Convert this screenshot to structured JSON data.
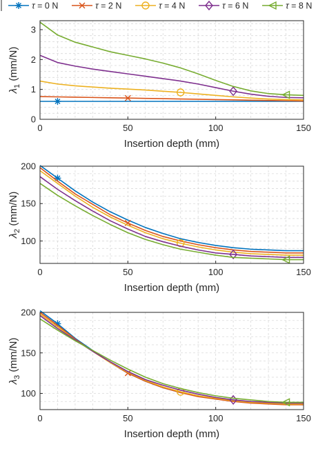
{
  "legend": {
    "entries": [
      {
        "tau": "τ",
        "label": " = 0 N",
        "color": "#0072BD",
        "marker": "asterisk"
      },
      {
        "tau": "τ",
        "label": " = 2 N",
        "color": "#D95319",
        "marker": "x"
      },
      {
        "tau": "τ",
        "label": " = 4 N",
        "color": "#EDB120",
        "marker": "circle"
      },
      {
        "tau": "τ",
        "label": " = 6 N",
        "color": "#7E2F8E",
        "marker": "diamond"
      },
      {
        "tau": "τ",
        "label": " = 8 N",
        "color": "#77AC30",
        "marker": "triangle-left"
      }
    ]
  },
  "chart_data": [
    {
      "type": "line",
      "xlabel": "Insertion depth (mm)",
      "ylabel": {
        "main": "λ",
        "sub": "1",
        "unit": " (mm/N)"
      },
      "xlim": [
        0,
        150
      ],
      "ylim": [
        0,
        3.3
      ],
      "xticks": [
        0,
        50,
        100,
        150
      ],
      "yticks": [
        0,
        1,
        2,
        3
      ],
      "grid": "dashed-minor",
      "x": [
        0,
        10,
        20,
        30,
        40,
        50,
        60,
        70,
        80,
        90,
        100,
        110,
        120,
        130,
        140,
        150
      ],
      "series": [
        {
          "name": "τ = 0 N",
          "color": "#0072BD",
          "marker": "asterisk",
          "marker_x": 10,
          "values": [
            0.6,
            0.6,
            0.6,
            0.6,
            0.6,
            0.6,
            0.6,
            0.6,
            0.6,
            0.6,
            0.6,
            0.6,
            0.6,
            0.6,
            0.6,
            0.6
          ]
        },
        {
          "name": "τ = 2 N",
          "color": "#D95319",
          "marker": "x",
          "marker_x": 50,
          "values": [
            0.76,
            0.75,
            0.74,
            0.73,
            0.72,
            0.71,
            0.7,
            0.69,
            0.68,
            0.67,
            0.66,
            0.65,
            0.64,
            0.63,
            0.62,
            0.61
          ]
        },
        {
          "name": "τ = 4 N",
          "color": "#EDB120",
          "marker": "circle",
          "marker_x": 80,
          "values": [
            1.28,
            1.18,
            1.12,
            1.08,
            1.04,
            1.01,
            0.98,
            0.94,
            0.9,
            0.85,
            0.8,
            0.75,
            0.71,
            0.68,
            0.66,
            0.65
          ]
        },
        {
          "name": "τ = 6 N",
          "color": "#7E2F8E",
          "marker": "diamond",
          "marker_x": 110,
          "values": [
            2.14,
            1.9,
            1.78,
            1.68,
            1.6,
            1.52,
            1.44,
            1.36,
            1.28,
            1.18,
            1.06,
            0.94,
            0.84,
            0.77,
            0.73,
            0.72
          ]
        },
        {
          "name": "τ = 8 N",
          "color": "#77AC30",
          "marker": "triangle-left",
          "marker_x": 140,
          "values": [
            3.25,
            2.82,
            2.58,
            2.42,
            2.26,
            2.14,
            2.02,
            1.88,
            1.72,
            1.52,
            1.3,
            1.1,
            0.95,
            0.86,
            0.82,
            0.8
          ]
        }
      ]
    },
    {
      "type": "line",
      "xlabel": "Insertion depth (mm)",
      "ylabel": {
        "main": "λ",
        "sub": "2",
        "unit": " (mm/N)"
      },
      "xlim": [
        0,
        150
      ],
      "ylim": [
        70,
        200
      ],
      "xticks": [
        0,
        50,
        100,
        150
      ],
      "yticks": [
        100,
        150,
        200
      ],
      "grid": "dashed-minor",
      "x": [
        0,
        10,
        20,
        30,
        40,
        50,
        60,
        70,
        80,
        90,
        100,
        110,
        120,
        130,
        140,
        150
      ],
      "series": [
        {
          "name": "τ = 0 N",
          "color": "#0072BD",
          "marker": "asterisk",
          "marker_x": 10,
          "values": [
            201,
            184,
            167,
            152,
            139,
            128,
            118,
            110,
            103,
            98,
            94,
            91,
            89,
            88,
            87,
            87
          ]
        },
        {
          "name": "τ = 2 N",
          "color": "#D95319",
          "marker": "x",
          "marker_x": 50,
          "values": [
            198,
            180,
            163,
            149,
            135,
            124,
            114,
            106,
            100,
            95,
            91,
            88,
            86,
            85,
            84,
            84
          ]
        },
        {
          "name": "τ = 4 N",
          "color": "#EDB120",
          "marker": "circle",
          "marker_x": 80,
          "values": [
            194,
            177,
            160,
            145,
            132,
            121,
            111,
            103,
            97,
            92,
            88,
            85,
            83,
            82,
            81,
            81
          ]
        },
        {
          "name": "τ = 6 N",
          "color": "#7E2F8E",
          "marker": "diamond",
          "marker_x": 110,
          "values": [
            186,
            169,
            154,
            140,
            127,
            116,
            106,
            99,
            93,
            88,
            84,
            82,
            80,
            79,
            78,
            78
          ]
        },
        {
          "name": "τ = 8 N",
          "color": "#77AC30",
          "marker": "triangle-left",
          "marker_x": 140,
          "values": [
            177,
            161,
            147,
            134,
            122,
            111,
            102,
            95,
            89,
            85,
            81,
            78,
            77,
            76,
            75,
            75
          ]
        }
      ]
    },
    {
      "type": "line",
      "xlabel": "Insertion depth (mm)",
      "ylabel": {
        "main": "λ",
        "sub": "3",
        "unit": " (mm/N)"
      },
      "xlim": [
        0,
        150
      ],
      "ylim": [
        80,
        200
      ],
      "xticks": [
        0,
        50,
        100,
        150
      ],
      "yticks": [
        100,
        150,
        200
      ],
      "grid": "dashed-minor",
      "x": [
        0,
        10,
        20,
        30,
        40,
        50,
        60,
        70,
        80,
        90,
        100,
        110,
        120,
        130,
        140,
        150
      ],
      "series": [
        {
          "name": "τ = 0 N",
          "color": "#0072BD",
          "marker": "asterisk",
          "marker_x": 10,
          "values": [
            202,
            186,
            168,
            153,
            138,
            125,
            115,
            107,
            101,
            97,
            93,
            91,
            89,
            88,
            87,
            86
          ]
        },
        {
          "name": "τ = 2 N",
          "color": "#D95319",
          "marker": "x",
          "marker_x": 50,
          "values": [
            200,
            184,
            167,
            152,
            138,
            125,
            115,
            107,
            101,
            96,
            93,
            90,
            88,
            87,
            86,
            86
          ]
        },
        {
          "name": "τ = 4 N",
          "color": "#EDB120",
          "marker": "circle",
          "marker_x": 80,
          "values": [
            198,
            182,
            166,
            152,
            138,
            126,
            116,
            108,
            102,
            97,
            94,
            91,
            89,
            88,
            87,
            87
          ]
        },
        {
          "name": "τ = 6 N",
          "color": "#7E2F8E",
          "marker": "diamond",
          "marker_x": 110,
          "values": [
            196,
            180,
            166,
            152,
            139,
            127,
            117,
            110,
            104,
            99,
            95,
            92,
            90,
            89,
            88,
            88
          ]
        },
        {
          "name": "τ = 8 N",
          "color": "#77AC30",
          "marker": "triangle-left",
          "marker_x": 140,
          "values": [
            192,
            178,
            165,
            153,
            141,
            130,
            120,
            112,
            106,
            101,
            97,
            94,
            92,
            90,
            89,
            89
          ]
        }
      ]
    }
  ]
}
